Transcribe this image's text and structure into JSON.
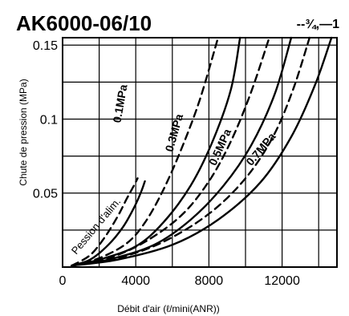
{
  "header": {
    "title": "AK6000-06/10",
    "size_code": "--¾,—1"
  },
  "chart_data": {
    "type": "line",
    "title": "AK6000-06/10",
    "xlabel": "Débit d'air (ℓ/mini(ANR))",
    "ylabel": "Chute de pression (MPa)",
    "xlim": [
      0,
      15000
    ],
    "ylim": [
      0,
      0.155
    ],
    "x_ticks": [
      0,
      4000,
      8000,
      12000
    ],
    "x_tick_labels": [
      "0",
      "4000",
      "8000",
      "12000"
    ],
    "y_ticks": [
      0.05,
      0.1,
      0.15
    ],
    "y_tick_labels": [
      "0.05",
      "0.1",
      "0.15"
    ],
    "grid": true,
    "annotation": "Pession d'alim.",
    "series": [
      {
        "name": "0.1MPa",
        "style": "solid",
        "x": [
          500,
          1500,
          2500,
          3300,
          3900,
          4300,
          4500
        ],
        "y": [
          0.001,
          0.005,
          0.015,
          0.027,
          0.04,
          0.051,
          0.058
        ]
      },
      {
        "name": "0.1MPa",
        "style": "dashed",
        "x": [
          500,
          1500,
          2300,
          3000,
          3500,
          3900,
          4100
        ],
        "y": [
          0.001,
          0.008,
          0.02,
          0.034,
          0.046,
          0.055,
          0.06
        ]
      },
      {
        "name": "0.3MPa",
        "style": "dashed",
        "x": [
          500,
          2000,
          3500,
          4500,
          5500,
          6500,
          7500,
          8500
        ],
        "y": [
          0.001,
          0.006,
          0.016,
          0.03,
          0.052,
          0.08,
          0.113,
          0.155
        ]
      },
      {
        "name": "0.3MPa",
        "style": "solid",
        "x": [
          500,
          2000,
          4000,
          5500,
          7000,
          8200,
          9200,
          9700
        ],
        "y": [
          0.001,
          0.005,
          0.014,
          0.03,
          0.055,
          0.085,
          0.12,
          0.155
        ]
      },
      {
        "name": "0.5MPa",
        "style": "dashed",
        "x": [
          500,
          2500,
          4500,
          6500,
          8000,
          9200,
          10300,
          11300
        ],
        "y": [
          0.001,
          0.006,
          0.017,
          0.035,
          0.058,
          0.085,
          0.118,
          0.155
        ]
      },
      {
        "name": "0.5MPa",
        "style": "solid",
        "x": [
          500,
          2500,
          5000,
          7000,
          8800,
          10300,
          11600,
          12500
        ],
        "y": [
          0.001,
          0.005,
          0.015,
          0.032,
          0.055,
          0.082,
          0.117,
          0.155
        ]
      },
      {
        "name": "0.7MPa",
        "style": "dashed",
        "x": [
          500,
          3000,
          5500,
          8000,
          10000,
          11500,
          12600,
          13500
        ],
        "y": [
          0.001,
          0.006,
          0.017,
          0.036,
          0.06,
          0.088,
          0.12,
          0.155
        ]
      },
      {
        "name": "0.7MPa",
        "style": "solid",
        "x": [
          500,
          3000,
          6000,
          8500,
          10800,
          12500,
          13800,
          14700
        ],
        "y": [
          0.001,
          0.005,
          0.015,
          0.032,
          0.057,
          0.088,
          0.123,
          0.155
        ]
      }
    ],
    "curve_labels": [
      {
        "text": "0.1MPa",
        "x": 3350,
        "y": 0.11,
        "angle": -80
      },
      {
        "text": "0.3MPa",
        "x": 6300,
        "y": 0.09,
        "angle": -74
      },
      {
        "text": "0.5MPa",
        "x": 8800,
        "y": 0.08,
        "angle": -66
      },
      {
        "text": "0.7MPa",
        "x": 11000,
        "y": 0.078,
        "angle": -50
      }
    ]
  }
}
